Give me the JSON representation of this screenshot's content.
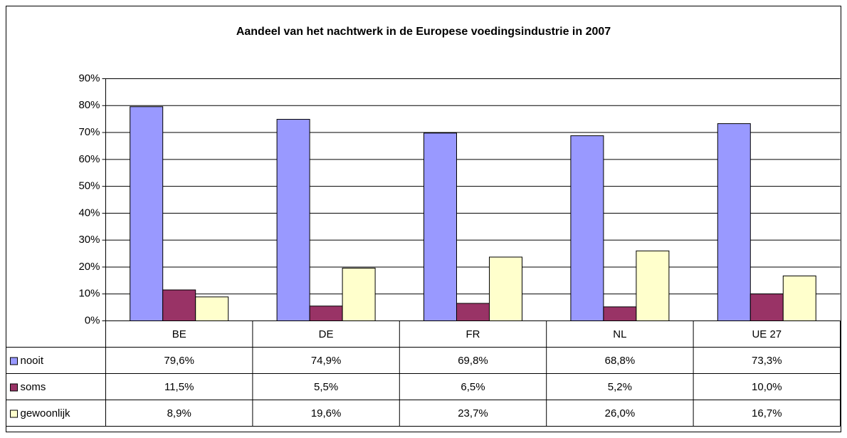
{
  "chart_data": {
    "type": "bar",
    "title": "Aandeel van het nachtwerk in de Europese voedingsindustrie in 2007",
    "categories": [
      "BE",
      "DE",
      "FR",
      "NL",
      "UE 27"
    ],
    "series": [
      {
        "name": "nooit",
        "color": "#9999ff",
        "values": [
          79.6,
          74.9,
          69.8,
          68.8,
          73.3
        ],
        "value_labels": [
          "79,6%",
          "74,9%",
          "69,8%",
          "68,8%",
          "73,3%"
        ]
      },
      {
        "name": "soms",
        "color": "#993366",
        "values": [
          11.5,
          5.5,
          6.5,
          5.2,
          10.0
        ],
        "value_labels": [
          "11,5%",
          "5,5%",
          "6,5%",
          "5,2%",
          "10,0%"
        ]
      },
      {
        "name": "gewoonlijk",
        "color": "#ffffcc",
        "values": [
          8.9,
          19.6,
          23.7,
          26.0,
          16.7
        ],
        "value_labels": [
          "8,9%",
          "19,6%",
          "23,7%",
          "26,0%",
          "16,7%"
        ]
      }
    ],
    "ylim": [
      0,
      90
    ],
    "yticks": [
      {
        "value": 0,
        "label": "0%"
      },
      {
        "value": 10,
        "label": "10%"
      },
      {
        "value": 20,
        "label": "20%"
      },
      {
        "value": 30,
        "label": "30%"
      },
      {
        "value": 40,
        "label": "40%"
      },
      {
        "value": 50,
        "label": "50%"
      },
      {
        "value": 60,
        "label": "60%"
      },
      {
        "value": 70,
        "label": "70%"
      },
      {
        "value": 80,
        "label": "80%"
      },
      {
        "value": 90,
        "label": "90%"
      }
    ],
    "grid": true
  }
}
